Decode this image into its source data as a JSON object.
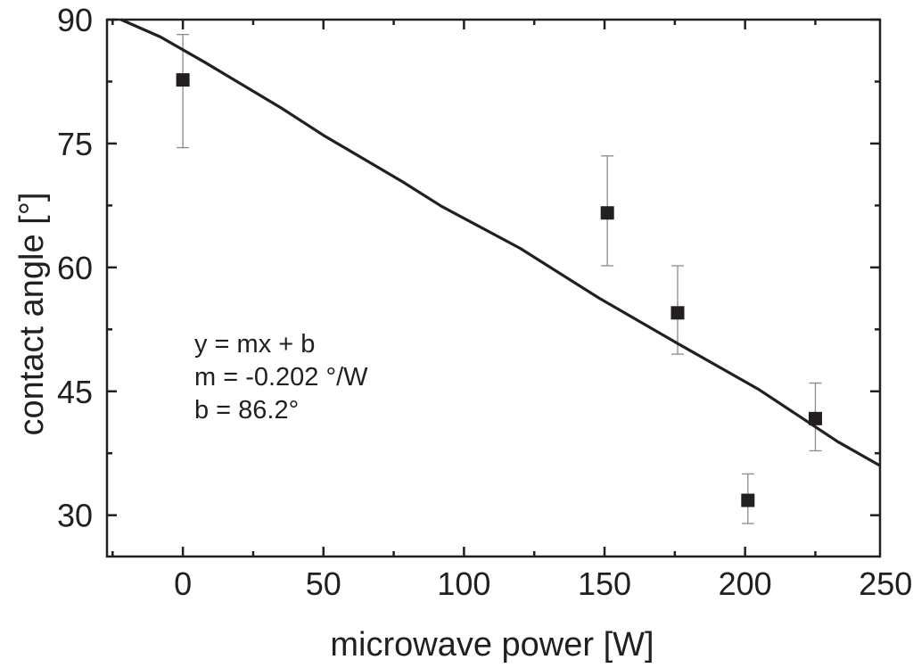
{
  "chart_data": {
    "type": "scatter",
    "xlabel": "microwave power [W]",
    "ylabel": "contact angle [°]",
    "xlim": [
      -27,
      248
    ],
    "ylim": [
      25,
      90
    ],
    "xticks": [
      0,
      50,
      100,
      150,
      200,
      250
    ],
    "yticks": [
      30,
      45,
      60,
      75,
      90
    ],
    "grid": false,
    "legend": "none",
    "series": [
      {
        "kind": "points_with_error_bars",
        "x": [
          0,
          151,
          176,
          201,
          225
        ],
        "y": [
          82.7,
          66.6,
          54.5,
          31.8,
          41.7
        ],
        "yerr_low": [
          74.5,
          60.2,
          49.5,
          29.0,
          37.8
        ],
        "yerr_high": [
          88.2,
          73.5,
          60.2,
          35.0,
          46.0
        ],
        "marker": "filled-square",
        "color": "#231f20"
      },
      {
        "kind": "fit_line",
        "x": [
          -22,
          -8,
          8,
          35,
          50,
          78,
          92,
          120,
          148,
          176,
          205,
          233,
          248
        ],
        "y": [
          90.0,
          87.9,
          84.8,
          79.3,
          76.0,
          70.4,
          67.4,
          62.3,
          56.3,
          50.8,
          45.2,
          38.9,
          36.0
        ],
        "color": "#231f20"
      }
    ],
    "annotations": [
      "y = mx + b",
      "m = -0.202 °/W",
      "b = 86.2°"
    ]
  }
}
